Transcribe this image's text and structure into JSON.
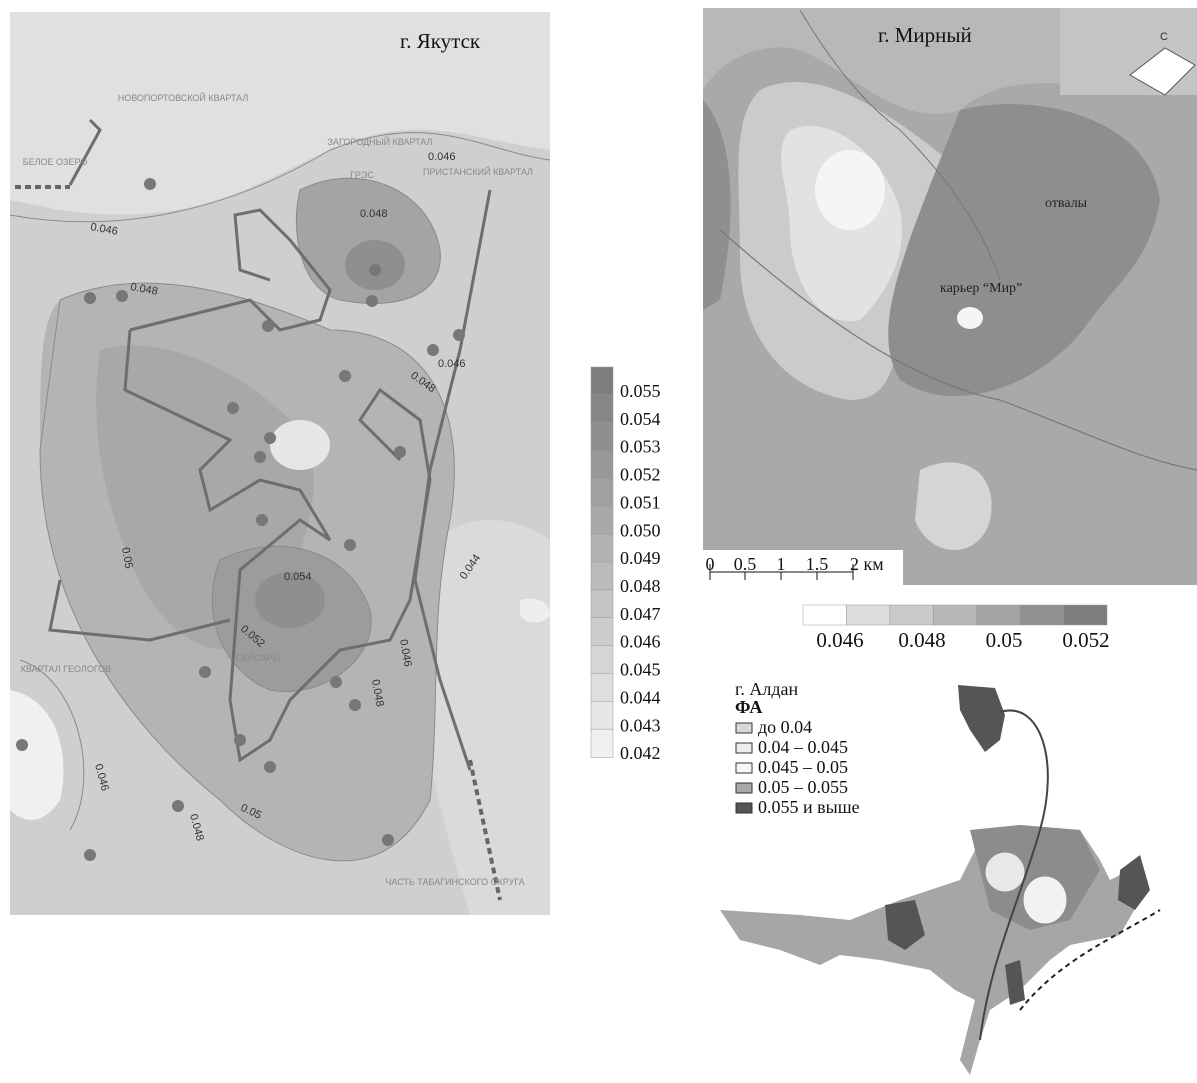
{
  "yakutsk": {
    "title": "г. Якутск",
    "districts": [
      "НОВОПОРТОВСКОЙ КВАРТАЛ",
      "ЗАГОРОДНЫЙ КВАРТАЛ",
      "БЕЛОЕ ОЗЕРО",
      "ПРИСТАНСКИЙ КВАРТАЛ",
      "ГРЭС",
      "КВАРТАЛ ГЕОЛОГОВ",
      "САЙСАРЫ",
      "ЧАСТЬ ТАБАГИНСКОГО ОКРУГА"
    ],
    "isolines": [
      "0.046",
      "0.046",
      "0.048",
      "0.048",
      "0.048",
      "0.046",
      "0.05",
      "0.054",
      "0.052",
      "0.044",
      "0.046",
      "0.048",
      "0.046",
      "0.048",
      "0.05"
    ],
    "legend": [
      "0.055",
      "0.054",
      "0.053",
      "0.052",
      "0.051",
      "0.050",
      "0.049",
      "0.048",
      "0.047",
      "0.046",
      "0.045",
      "0.044",
      "0.043",
      "0.042"
    ]
  },
  "mirny": {
    "title": "г. Мирный",
    "north": "С",
    "labels": [
      "отвалы",
      "карьер “Мир”"
    ],
    "scale": [
      "0",
      "0.5",
      "1",
      "1.5",
      "2 км"
    ],
    "legend": [
      "0.046",
      "0.048",
      "0.05",
      "0.052"
    ]
  },
  "aldan": {
    "title": "г. Алдан",
    "legend_title": "ФА",
    "legend": [
      "до 0.04",
      "0.04 – 0.045",
      "0.045 – 0.05",
      "0.05 – 0.055",
      "0.055 и выше"
    ]
  }
}
